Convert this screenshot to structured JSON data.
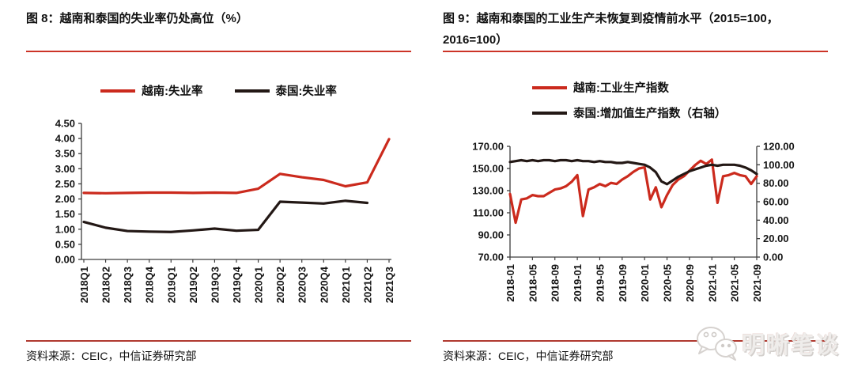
{
  "page": {
    "background": "#ffffff"
  },
  "colors": {
    "series_red": "#cb2a1d",
    "series_black": "#231815",
    "title_rule_red": "#cc3427",
    "footer_rule_red": "#b03a30",
    "text": "#111111",
    "axis": "#3d3d3d"
  },
  "panels": [
    {
      "title": "图 8：越南和泰国的失业率仍处高位（%）",
      "legend": [
        {
          "label": "越南:失业率",
          "color": "#cb2a1d"
        },
        {
          "label": "泰国:失业率",
          "color": "#231815"
        }
      ],
      "source": "资料来源：CEIC，中信证券研究部"
    },
    {
      "title": "图 9：越南和泰国的工业生产未恢复到疫情前水平（2015=100，2016=100）",
      "legend": [
        {
          "label": "越南:工业生产指数",
          "color": "#cb2a1d"
        },
        {
          "label": "泰国:增加值生产指数（右轴）",
          "color": "#231815"
        }
      ],
      "source": "资料来源：CEIC，中信证券研究部"
    }
  ],
  "watermark": {
    "text": "明晰笔谈",
    "icon": "wechat-bubbles-icon"
  },
  "chart_data": [
    {
      "type": "line",
      "title": "图 8：越南和泰国的失业率仍处高位（%）",
      "categories": [
        "2018Q1",
        "2018Q2",
        "2018Q3",
        "2018Q4",
        "2019Q1",
        "2019Q2",
        "2019Q3",
        "2019Q4",
        "2020Q1",
        "2020Q2",
        "2020Q3",
        "2020Q4",
        "2021Q1",
        "2021Q2",
        "2021Q3"
      ],
      "ylim": [
        0,
        4.5
      ],
      "ytick_step": 0.5,
      "ytick_format_decimals": 2,
      "grid": false,
      "legend_position": "top",
      "series": [
        {
          "name": "越南:失业率",
          "color": "#cb2a1d",
          "axis": "left",
          "values": [
            2.2,
            2.19,
            2.2,
            2.21,
            2.21,
            2.2,
            2.21,
            2.2,
            2.34,
            2.83,
            2.72,
            2.63,
            2.42,
            2.55,
            3.98
          ]
        },
        {
          "name": "泰国:失业率",
          "color": "#231815",
          "axis": "left",
          "values": [
            1.24,
            1.05,
            0.94,
            0.92,
            0.91,
            0.96,
            1.02,
            0.95,
            0.98,
            1.91,
            1.88,
            1.85,
            1.94,
            1.87,
            null
          ]
        }
      ]
    },
    {
      "type": "line",
      "title": "图 9：越南和泰国的工业生产未恢复到疫情前水平（2015=100，2016=100）",
      "x": [
        "2018-01",
        "2018-02",
        "2018-03",
        "2018-04",
        "2018-05",
        "2018-06",
        "2018-07",
        "2018-08",
        "2018-09",
        "2018-10",
        "2018-11",
        "2018-12",
        "2019-01",
        "2019-02",
        "2019-03",
        "2019-04",
        "2019-05",
        "2019-06",
        "2019-07",
        "2019-08",
        "2019-09",
        "2019-10",
        "2019-11",
        "2019-12",
        "2020-01",
        "2020-02",
        "2020-03",
        "2020-04",
        "2020-05",
        "2020-06",
        "2020-07",
        "2020-08",
        "2020-09",
        "2020-10",
        "2020-11",
        "2020-12",
        "2021-01",
        "2021-02",
        "2021-03",
        "2021-04",
        "2021-05",
        "2021-06",
        "2021-07",
        "2021-08",
        "2021-09"
      ],
      "x_label_every": 4,
      "left_ylim": [
        70,
        170
      ],
      "left_ytick_step": 20,
      "right_ylim": [
        0,
        120
      ],
      "right_ytick_step": 20,
      "ytick_format_decimals": 2,
      "grid": false,
      "legend_position": "top",
      "series": [
        {
          "name": "越南:工业生产指数",
          "color": "#cb2a1d",
          "axis": "left",
          "values": [
            127,
            101,
            122,
            123,
            126,
            125,
            125,
            128,
            131,
            132,
            134,
            138,
            144,
            107,
            131,
            133,
            136,
            134,
            137,
            136,
            140,
            143,
            147,
            150,
            151,
            122,
            133,
            115,
            126,
            135,
            140,
            143,
            148,
            153,
            157,
            154,
            158,
            119,
            143,
            144,
            146,
            144,
            143,
            136,
            143
          ]
        },
        {
          "name": "泰国:增加值生产指数（右轴）",
          "color": "#231815",
          "axis": "right",
          "values": [
            103,
            104,
            105,
            104,
            105,
            104,
            105,
            105,
            104,
            105,
            105,
            104,
            105,
            104,
            104,
            103,
            104,
            103,
            103,
            102,
            102,
            103,
            102,
            101,
            100,
            97,
            92,
            82,
            79,
            83,
            87,
            90,
            93,
            95,
            97,
            99,
            100,
            99,
            100,
            100,
            100,
            99,
            97,
            94,
            90
          ]
        }
      ]
    }
  ]
}
